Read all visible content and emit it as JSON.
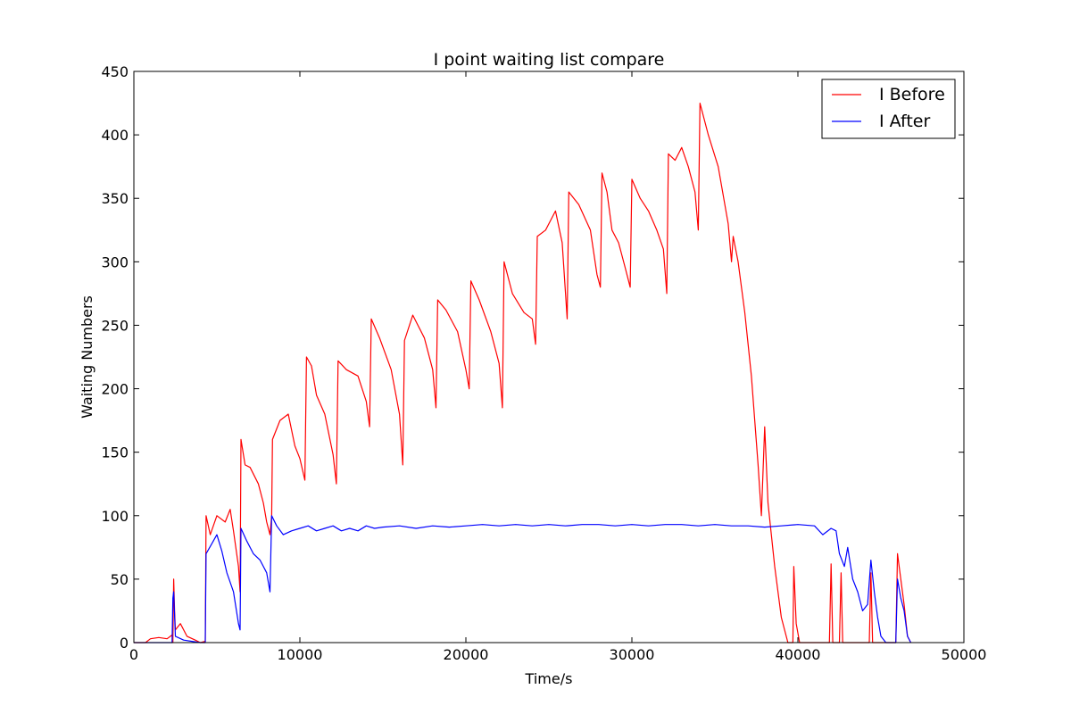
{
  "chart_data": {
    "type": "line",
    "title": "I point waiting list compare",
    "xlabel": "Time/s",
    "ylabel": "Waiting Numbers",
    "xlim": [
      0,
      50000
    ],
    "ylim": [
      0,
      450
    ],
    "xticks": [
      0,
      10000,
      20000,
      30000,
      40000,
      50000
    ],
    "yticks": [
      0,
      50,
      100,
      150,
      200,
      250,
      300,
      350,
      400,
      450
    ],
    "grid": false,
    "legend_position": "top-right",
    "series": [
      {
        "name": "I Before",
        "color": "#ff0000",
        "points": [
          [
            0,
            0
          ],
          [
            700,
            0
          ],
          [
            1000,
            3
          ],
          [
            1500,
            4
          ],
          [
            2000,
            3
          ],
          [
            2300,
            6
          ],
          [
            2350,
            0
          ],
          [
            2400,
            50
          ],
          [
            2450,
            25
          ],
          [
            2500,
            10
          ],
          [
            2800,
            15
          ],
          [
            3200,
            5
          ],
          [
            3700,
            2
          ],
          [
            4000,
            0
          ],
          [
            4300,
            1
          ],
          [
            4350,
            100
          ],
          [
            4600,
            85
          ],
          [
            5000,
            100
          ],
          [
            5500,
            95
          ],
          [
            5800,
            105
          ],
          [
            6000,
            88
          ],
          [
            6300,
            60
          ],
          [
            6400,
            40
          ],
          [
            6450,
            160
          ],
          [
            6700,
            140
          ],
          [
            7000,
            138
          ],
          [
            7500,
            125
          ],
          [
            7800,
            110
          ],
          [
            8000,
            95
          ],
          [
            8200,
            85
          ],
          [
            8300,
            100
          ],
          [
            8350,
            160
          ],
          [
            8800,
            175
          ],
          [
            9300,
            180
          ],
          [
            9700,
            155
          ],
          [
            10000,
            145
          ],
          [
            10300,
            128
          ],
          [
            10400,
            225
          ],
          [
            10700,
            218
          ],
          [
            11000,
            195
          ],
          [
            11500,
            180
          ],
          [
            12000,
            148
          ],
          [
            12200,
            125
          ],
          [
            12300,
            222
          ],
          [
            12800,
            215
          ],
          [
            13500,
            210
          ],
          [
            14000,
            190
          ],
          [
            14200,
            170
          ],
          [
            14300,
            255
          ],
          [
            14800,
            240
          ],
          [
            15500,
            215
          ],
          [
            16000,
            180
          ],
          [
            16200,
            140
          ],
          [
            16300,
            238
          ],
          [
            16800,
            258
          ],
          [
            17500,
            240
          ],
          [
            18000,
            215
          ],
          [
            18200,
            185
          ],
          [
            18300,
            270
          ],
          [
            18800,
            262
          ],
          [
            19500,
            245
          ],
          [
            20000,
            215
          ],
          [
            20200,
            200
          ],
          [
            20300,
            285
          ],
          [
            20800,
            270
          ],
          [
            21500,
            245
          ],
          [
            22000,
            220
          ],
          [
            22200,
            185
          ],
          [
            22300,
            300
          ],
          [
            22800,
            275
          ],
          [
            23500,
            260
          ],
          [
            24000,
            255
          ],
          [
            24200,
            235
          ],
          [
            24300,
            320
          ],
          [
            24800,
            325
          ],
          [
            25400,
            340
          ],
          [
            25800,
            315
          ],
          [
            26100,
            255
          ],
          [
            26200,
            355
          ],
          [
            26800,
            345
          ],
          [
            27500,
            325
          ],
          [
            27900,
            290
          ],
          [
            28100,
            280
          ],
          [
            28200,
            370
          ],
          [
            28500,
            355
          ],
          [
            28800,
            325
          ],
          [
            29200,
            315
          ],
          [
            29600,
            295
          ],
          [
            29900,
            280
          ],
          [
            30000,
            365
          ],
          [
            30500,
            350
          ],
          [
            31000,
            340
          ],
          [
            31500,
            325
          ],
          [
            31900,
            310
          ],
          [
            32100,
            275
          ],
          [
            32200,
            385
          ],
          [
            32600,
            380
          ],
          [
            33000,
            390
          ],
          [
            33400,
            375
          ],
          [
            33800,
            355
          ],
          [
            34000,
            325
          ],
          [
            34100,
            425
          ],
          [
            34600,
            400
          ],
          [
            35200,
            375
          ],
          [
            35800,
            330
          ],
          [
            36000,
            300
          ],
          [
            36100,
            320
          ],
          [
            36400,
            300
          ],
          [
            36800,
            260
          ],
          [
            37200,
            210
          ],
          [
            37600,
            140
          ],
          [
            37800,
            100
          ],
          [
            38000,
            170
          ],
          [
            38200,
            110
          ],
          [
            38600,
            60
          ],
          [
            39000,
            20
          ],
          [
            39400,
            0
          ],
          [
            39700,
            0
          ],
          [
            39750,
            60
          ],
          [
            39900,
            15
          ],
          [
            40100,
            0
          ],
          [
            41000,
            0
          ],
          [
            41900,
            0
          ],
          [
            42000,
            62
          ],
          [
            42100,
            0
          ],
          [
            42500,
            0
          ],
          [
            42600,
            55
          ],
          [
            42700,
            0
          ],
          [
            44300,
            0
          ],
          [
            44400,
            55
          ],
          [
            44500,
            0
          ],
          [
            44700,
            0
          ],
          [
            45000,
            0
          ],
          [
            45500,
            0
          ],
          [
            45900,
            0
          ],
          [
            46000,
            70
          ],
          [
            46200,
            50
          ],
          [
            46400,
            30
          ],
          [
            46600,
            5
          ],
          [
            46800,
            0
          ]
        ]
      },
      {
        "name": "I After",
        "color": "#0000ff",
        "points": [
          [
            0,
            0
          ],
          [
            2300,
            0
          ],
          [
            2350,
            35
          ],
          [
            2400,
            40
          ],
          [
            2500,
            5
          ],
          [
            3000,
            2
          ],
          [
            3500,
            1
          ],
          [
            4000,
            0
          ],
          [
            4300,
            0
          ],
          [
            4350,
            70
          ],
          [
            4700,
            78
          ],
          [
            5000,
            85
          ],
          [
            5300,
            72
          ],
          [
            5600,
            55
          ],
          [
            6000,
            40
          ],
          [
            6300,
            15
          ],
          [
            6400,
            10
          ],
          [
            6450,
            90
          ],
          [
            6800,
            80
          ],
          [
            7200,
            70
          ],
          [
            7600,
            65
          ],
          [
            8000,
            55
          ],
          [
            8200,
            40
          ],
          [
            8300,
            100
          ],
          [
            8600,
            92
          ],
          [
            9000,
            85
          ],
          [
            9500,
            88
          ],
          [
            10000,
            90
          ],
          [
            10500,
            92
          ],
          [
            11000,
            88
          ],
          [
            11500,
            90
          ],
          [
            12000,
            92
          ],
          [
            12500,
            88
          ],
          [
            13000,
            90
          ],
          [
            13500,
            88
          ],
          [
            14000,
            92
          ],
          [
            14500,
            90
          ],
          [
            15000,
            91
          ],
          [
            16000,
            92
          ],
          [
            17000,
            90
          ],
          [
            18000,
            92
          ],
          [
            19000,
            91
          ],
          [
            20000,
            92
          ],
          [
            21000,
            93
          ],
          [
            22000,
            92
          ],
          [
            23000,
            93
          ],
          [
            24000,
            92
          ],
          [
            25000,
            93
          ],
          [
            26000,
            92
          ],
          [
            27000,
            93
          ],
          [
            28000,
            93
          ],
          [
            29000,
            92
          ],
          [
            30000,
            93
          ],
          [
            31000,
            92
          ],
          [
            32000,
            93
          ],
          [
            33000,
            93
          ],
          [
            34000,
            92
          ],
          [
            35000,
            93
          ],
          [
            36000,
            92
          ],
          [
            37000,
            92
          ],
          [
            38000,
            91
          ],
          [
            39000,
            92
          ],
          [
            40000,
            93
          ],
          [
            41000,
            92
          ],
          [
            41500,
            85
          ],
          [
            42000,
            90
          ],
          [
            42300,
            88
          ],
          [
            42500,
            70
          ],
          [
            42800,
            60
          ],
          [
            43000,
            75
          ],
          [
            43300,
            50
          ],
          [
            43600,
            40
          ],
          [
            43900,
            25
          ],
          [
            44200,
            30
          ],
          [
            44400,
            65
          ],
          [
            44600,
            40
          ],
          [
            44800,
            20
          ],
          [
            45000,
            5
          ],
          [
            45300,
            0
          ],
          [
            45900,
            0
          ],
          [
            46000,
            50
          ],
          [
            46200,
            35
          ],
          [
            46400,
            25
          ],
          [
            46600,
            5
          ],
          [
            46800,
            0
          ]
        ]
      }
    ]
  }
}
